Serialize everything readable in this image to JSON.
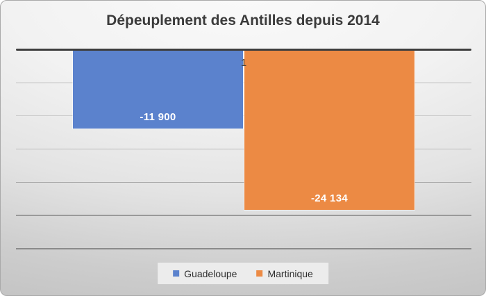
{
  "title": "Dépeuplement des Antilles depuis 2014",
  "chart_data": {
    "type": "bar",
    "orientation": "vertical",
    "title": "Dépeuplement des Antilles depuis 2014",
    "categories": [
      "1"
    ],
    "series": [
      {
        "name": "Guadeloupe",
        "values": [
          -11900
        ],
        "value_label": "-11 900",
        "color": "#5b82cd"
      },
      {
        "name": "Martinique",
        "values": [
          -24134
        ],
        "value_label": "-24 134",
        "color": "#ec8a44"
      }
    ],
    "ylim": [
      -30000,
      0
    ],
    "gridline_step": 5000,
    "grid": true,
    "legend_position": "bottom",
    "axis_color": "#3e3e3e",
    "data_label_color": "#ffffff"
  }
}
